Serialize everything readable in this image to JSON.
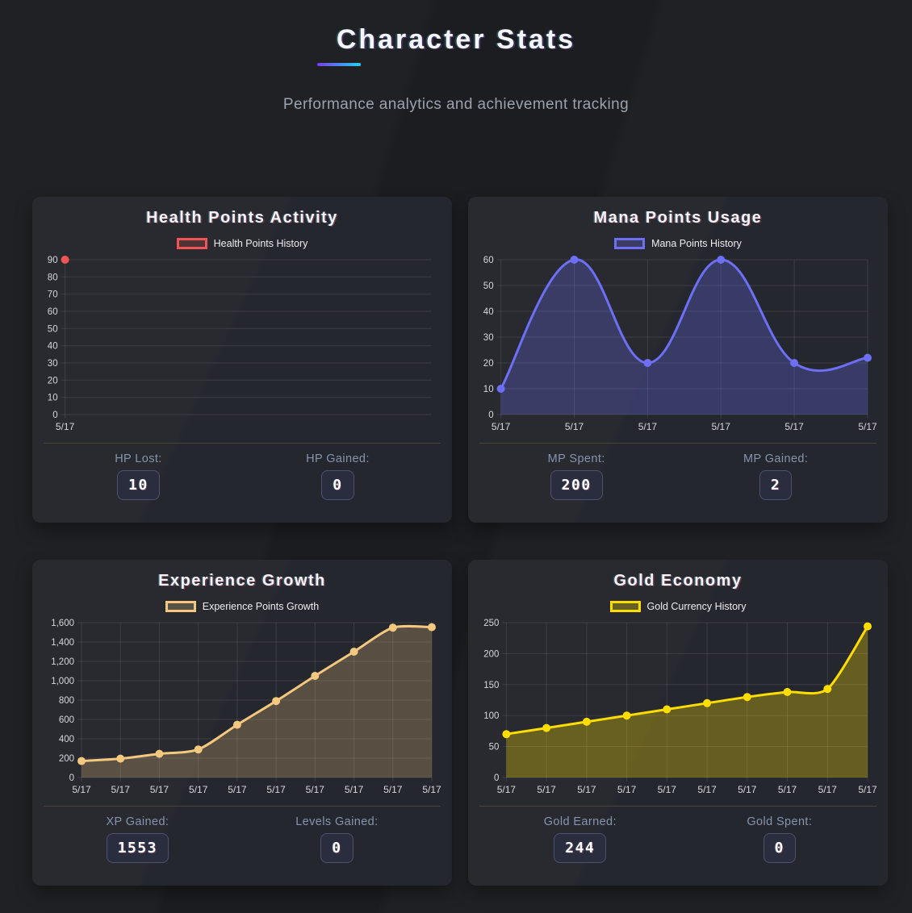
{
  "page": {
    "title": "Character Stats",
    "subtitle": "Performance analytics and achievement tracking"
  },
  "colors": {
    "page_bg": "#1c1d20",
    "panel_bg": "#25272e",
    "accent_underline_from": "#7c3aed",
    "accent_underline_to": "#22d3ee",
    "grid_line": "rgba(255,255,255,0.10)",
    "tick_label": "#d6d8da",
    "stat_label": "#8694ae"
  },
  "chart_data": [
    {
      "id": "hp",
      "type": "line",
      "panel_title": "Health Points Activity",
      "legend": "Health Points History",
      "color": "#f05454",
      "fill_opacity": 0.2,
      "tension": 0,
      "x": [
        "5/17"
      ],
      "values": [
        90
      ],
      "ylim": [
        0,
        90
      ],
      "ytick_step": 10,
      "grid": "on",
      "legend_position": "top",
      "stats": [
        {
          "label": "HP Lost:",
          "value": "10"
        },
        {
          "label": "HP Gained:",
          "value": "0"
        }
      ]
    },
    {
      "id": "mana",
      "type": "area",
      "panel_title": "Mana Points Usage",
      "legend": "Mana Points History",
      "color": "#6d6ff5",
      "fill_opacity": 0.28,
      "tension": 0.4,
      "x": [
        "5/17",
        "5/17",
        "5/17",
        "5/17",
        "5/17",
        "5/17"
      ],
      "values": [
        10,
        60,
        20,
        60,
        20,
        22
      ],
      "ylim": [
        0,
        60
      ],
      "ytick_step": 10,
      "grid": "on",
      "legend_position": "top",
      "stats": [
        {
          "label": "MP Spent:",
          "value": "200"
        },
        {
          "label": "MP Gained:",
          "value": "2"
        }
      ]
    },
    {
      "id": "xp",
      "type": "area",
      "panel_title": "Experience Growth",
      "legend": "Experience Points Growth",
      "color": "#f4c87f",
      "fill_opacity": 0.25,
      "tension": 0.25,
      "x": [
        "5/17",
        "5/17",
        "5/17",
        "5/17",
        "5/17",
        "5/17",
        "5/17",
        "5/17",
        "5/17",
        "5/17"
      ],
      "values": [
        170,
        195,
        245,
        290,
        545,
        790,
        1050,
        1300,
        1548,
        1553
      ],
      "ylim": [
        0,
        1600
      ],
      "ytick_step": 200,
      "grid": "on",
      "legend_position": "top",
      "stats": [
        {
          "label": "XP Gained:",
          "value": "1553"
        },
        {
          "label": "Levels Gained:",
          "value": "0"
        }
      ]
    },
    {
      "id": "gold",
      "type": "area",
      "panel_title": "Gold Economy",
      "legend": "Gold Currency History",
      "color": "#ffdd00",
      "fill_opacity": 0.3,
      "tension": 0.25,
      "x": [
        "5/17",
        "5/17",
        "5/17",
        "5/17",
        "5/17",
        "5/17",
        "5/17",
        "5/17",
        "5/17",
        "5/17"
      ],
      "values": [
        70,
        80,
        90,
        100,
        110,
        120,
        130,
        138,
        143,
        244
      ],
      "ylim": [
        0,
        250
      ],
      "ytick_step": 50,
      "grid": "on",
      "legend_position": "top",
      "stats": [
        {
          "label": "Gold Earned:",
          "value": "244"
        },
        {
          "label": "Gold Spent:",
          "value": "0"
        }
      ]
    }
  ]
}
